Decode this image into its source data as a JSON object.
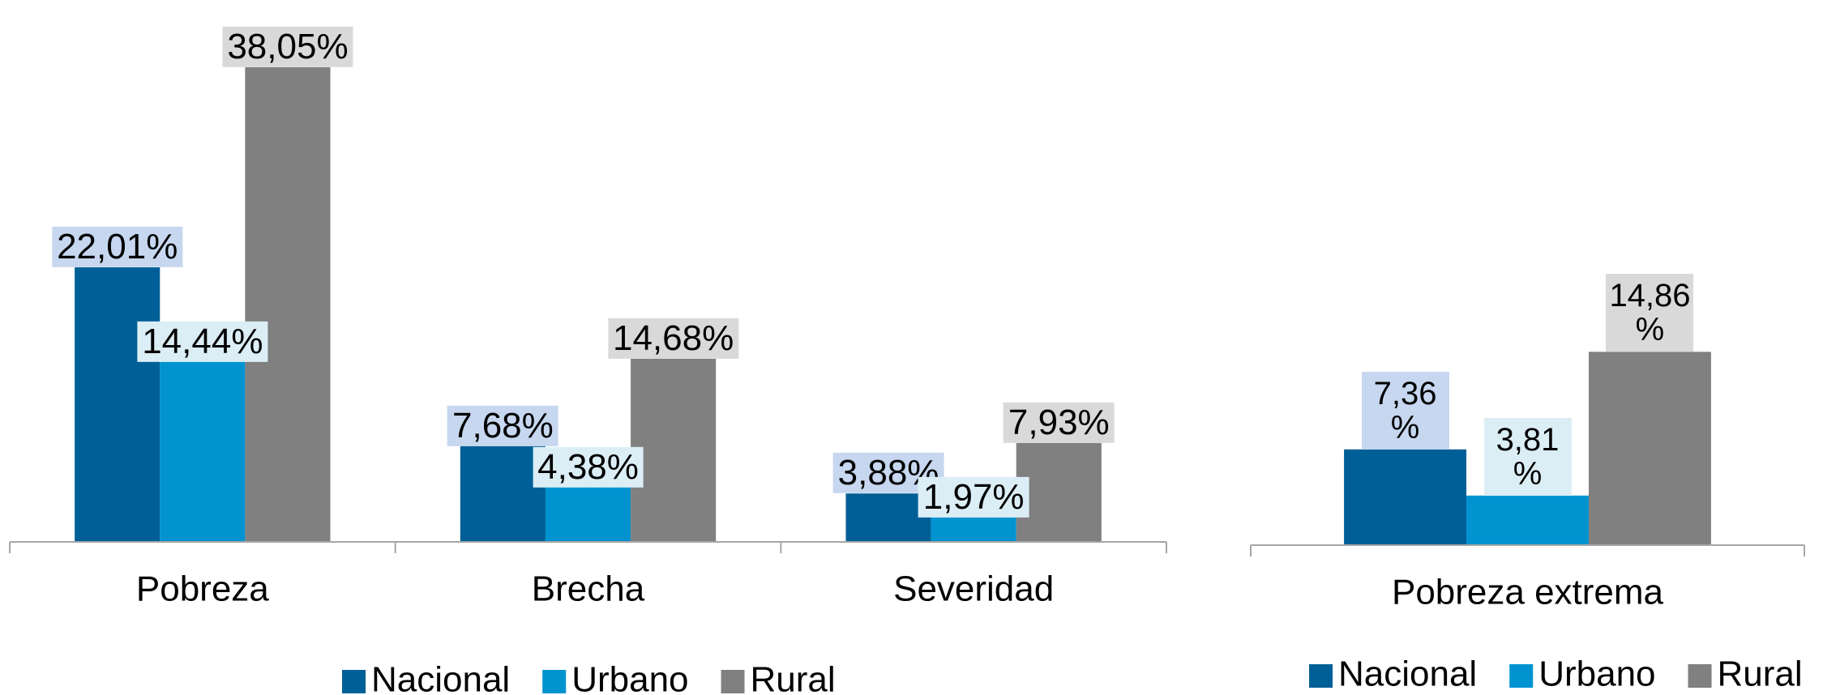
{
  "chart_data": [
    {
      "type": "bar",
      "categories": [
        "Pobreza",
        "Brecha",
        "Severidad"
      ],
      "series": [
        {
          "name": "Nacional",
          "color": "#005f96",
          "label_color": "#c6d7ef",
          "values": [
            22.01,
            7.68,
            3.88
          ],
          "value_labels": [
            "22,01%",
            "7,68%",
            "3,88%"
          ]
        },
        {
          "name": "Urbano",
          "color": "#0093d0",
          "label_color": "#dceef5",
          "values": [
            14.44,
            4.38,
            1.97
          ],
          "value_labels": [
            "14,44%",
            "4,38%",
            "1,97%"
          ]
        },
        {
          "name": "Rural",
          "color": "#808080",
          "label_color": "#d9d9d9",
          "values": [
            38.05,
            14.68,
            7.93
          ],
          "value_labels": [
            "38,05%",
            "14,68%",
            "7,93%"
          ]
        }
      ],
      "ylim": [
        0,
        40
      ],
      "legend": "bottom"
    },
    {
      "type": "bar",
      "categories": [
        "Pobreza extrema"
      ],
      "series": [
        {
          "name": "Nacional",
          "color": "#005f96",
          "label_color": "#c6d7ef",
          "values": [
            7.36
          ],
          "value_labels": [
            "7,36 %"
          ]
        },
        {
          "name": "Urbano",
          "color": "#0093d0",
          "label_color": "#dceef5",
          "values": [
            3.81
          ],
          "value_labels": [
            "3,81 %"
          ]
        },
        {
          "name": "Rural",
          "color": "#808080",
          "label_color": "#d9d9d9",
          "values": [
            14.86
          ],
          "value_labels": [
            "14,86 %"
          ]
        }
      ],
      "ylim": [
        0,
        16
      ],
      "legend": "bottom"
    }
  ]
}
